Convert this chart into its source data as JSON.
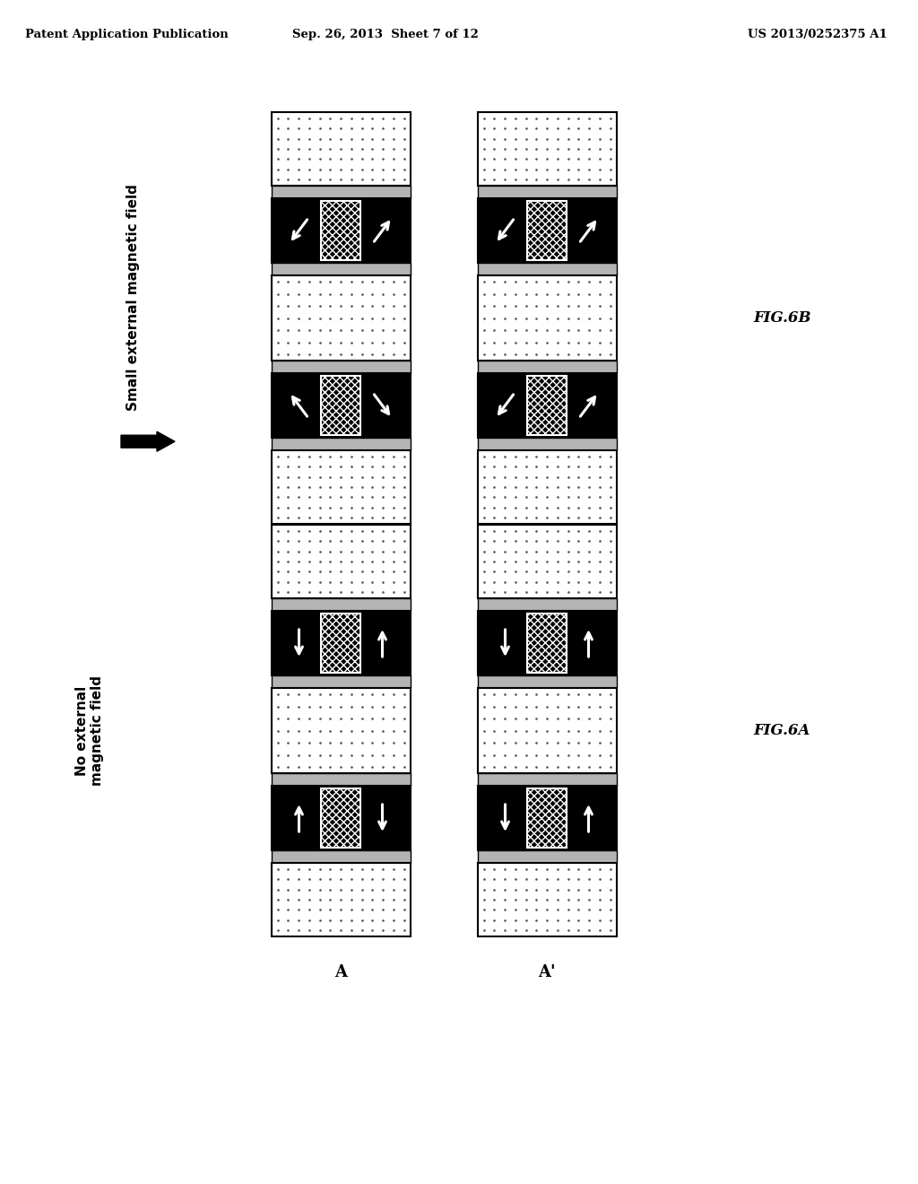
{
  "title_left": "Patent Application Publication",
  "title_center": "Sep. 26, 2013  Sheet 7 of 12",
  "title_right": "US 2013/0252375 A1",
  "fig_label_6B": "FIG.6B",
  "fig_label_6A": "FIG.6A",
  "label_A": "A",
  "label_Aprime": "A'",
  "label_small_field": "Small external magnetic field",
  "label_no_field": "No external\nmagnetic field",
  "bg_color": "#ffffff",
  "gray_color": "#b0b0b0",
  "black_color": "#000000",
  "dot_color": "#c8c8c8"
}
